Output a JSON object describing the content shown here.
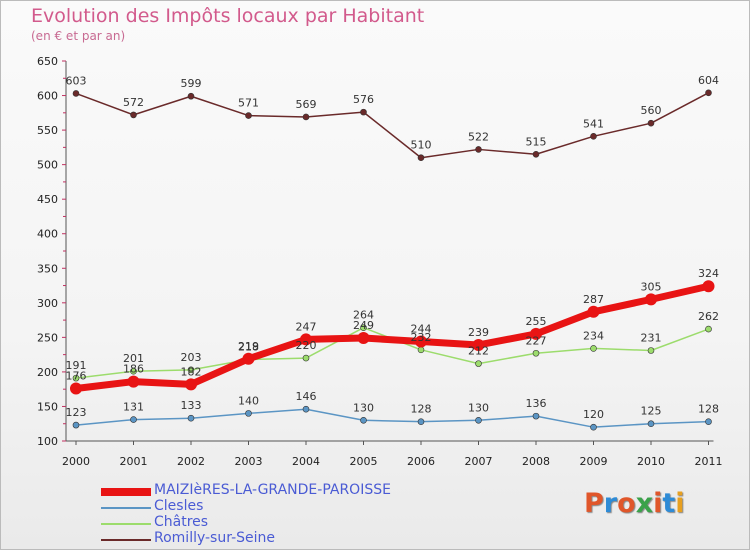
{
  "title": "Evolution des Impôts locaux par Habitant",
  "subtitle": "(en € et par an)",
  "logo": {
    "text": "Proxiti",
    "colors": [
      "#e0562a",
      "#2e8bd6",
      "#e0562a",
      "#3aa24a",
      "#e0562a",
      "#2e8bd6",
      "#e8a020"
    ]
  },
  "chart_data": {
    "type": "line",
    "title": "Evolution des Impôts locaux par Habitant",
    "subtitle": "(en € et par an)",
    "xlabel": "",
    "ylabel": "",
    "x": [
      "2000",
      "2001",
      "2002",
      "2003",
      "2004",
      "2005",
      "2006",
      "2007",
      "2008",
      "2009",
      "2010",
      "2011"
    ],
    "ylim": [
      100,
      650
    ],
    "yticks": [
      100,
      150,
      200,
      250,
      300,
      350,
      400,
      450,
      500,
      550,
      600,
      650
    ],
    "grid": false,
    "legend_position": "bottom-left",
    "series": [
      {
        "name": "MAIZIèRES-LA-GRANDE-PAROISSE",
        "color": "#e81414",
        "width": 7,
        "values": [
          176,
          186,
          182,
          219,
          247,
          249,
          244,
          239,
          255,
          287,
          305,
          324
        ]
      },
      {
        "name": "Clesles",
        "color": "#5b95c4",
        "width": 1.5,
        "values": [
          123,
          131,
          133,
          140,
          146,
          130,
          128,
          130,
          136,
          120,
          125,
          128
        ]
      },
      {
        "name": "Châtres",
        "color": "#9cdc6c",
        "width": 1.5,
        "values": [
          191,
          201,
          203,
          218,
          220,
          264,
          232,
          212,
          227,
          234,
          231,
          262
        ]
      },
      {
        "name": "Romilly-sur-Seine",
        "color": "#6a2a2a",
        "width": 1.5,
        "values": [
          603,
          572,
          599,
          571,
          569,
          576,
          510,
          522,
          515,
          541,
          560,
          604
        ]
      }
    ]
  }
}
